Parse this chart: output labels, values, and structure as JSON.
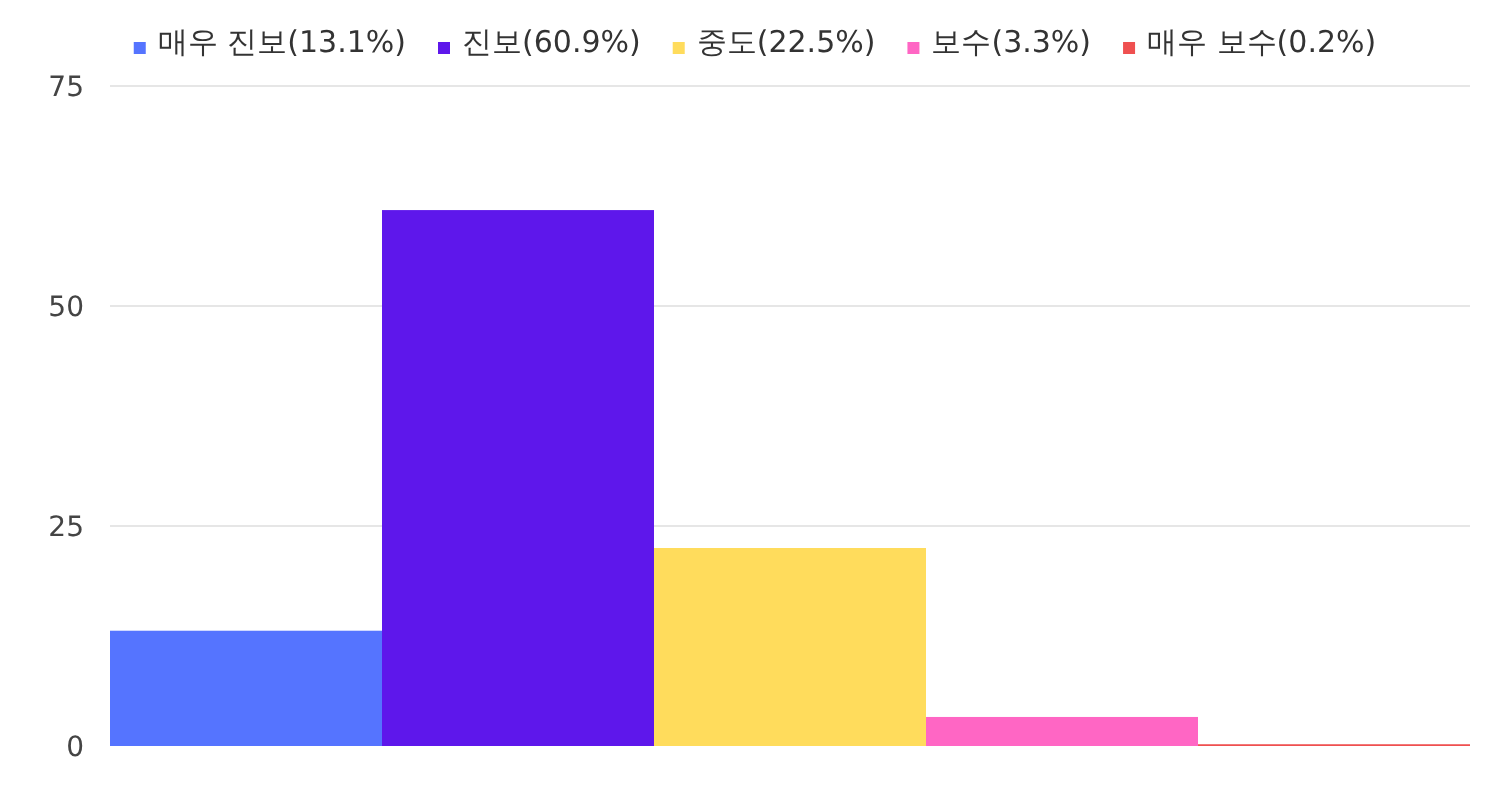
{
  "chart_data": {
    "type": "bar",
    "categories": [
      null
    ],
    "series": [
      {
        "name": "매우 진보(13.1%)",
        "color": "#5574ff",
        "values": [
          13.1
        ]
      },
      {
        "name": "진보(60.9%)",
        "color": "#5e17eb",
        "values": [
          60.9
        ]
      },
      {
        "name": "중도(22.5%)",
        "color": "#ffdc5c",
        "values": [
          22.5
        ]
      },
      {
        "name": "보수(3.3%)",
        "color": "#ff66c4",
        "values": [
          3.3
        ]
      },
      {
        "name": "매우 보수(0.2%)",
        "color": "#ef5050",
        "values": [
          0.2
        ]
      }
    ],
    "ylim": [
      0,
      75
    ],
    "yticks": [
      0,
      25,
      50,
      75
    ],
    "grid": "y",
    "legend": "top"
  }
}
